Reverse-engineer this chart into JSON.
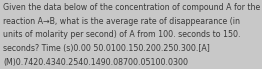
{
  "line1": "Given the data below of the concentration of compound A for the",
  "line2": "reaction A→B, what is the average rate of disappearance (in",
  "line3": "units of molarity per second) of A from 100. seconds to 150.",
  "line4": "seconds? Time (s)0.00 50.0100.150.200.250.300.[A]",
  "line5": "(M)0.7420.4340.2540.1490.08700.05100.0300",
  "bg_color": "#c8c8c8",
  "text_color": "#3a3a3a",
  "font_size": 5.7
}
